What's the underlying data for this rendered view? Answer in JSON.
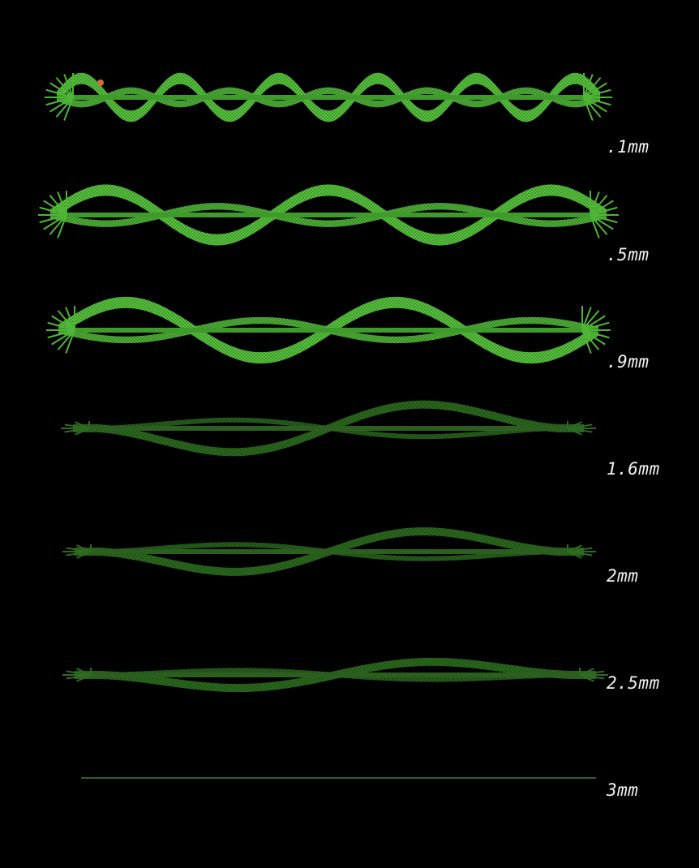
{
  "figure": {
    "background": "#000000",
    "mesh_color": "#3fa12b",
    "mesh_highlight": "#7be05a",
    "mesh_dark": "#1f4a16",
    "marker_color": "#d96a2a",
    "rows": [
      {
        "label": ".1mm",
        "waves": 5.5,
        "amplitude": 1.0
      },
      {
        "label": ".5mm",
        "waves": 2.5,
        "amplitude": 0.85
      },
      {
        "label": ".9mm",
        "waves": 2.0,
        "amplitude": 0.8
      },
      {
        "label": "1.6mm",
        "waves": 1.0,
        "amplitude": 0.55
      },
      {
        "label": "2mm",
        "waves": 1.0,
        "amplitude": 0.45
      },
      {
        "label": "2.5mm",
        "waves": 1.0,
        "amplitude": 0.3
      },
      {
        "label": "3mm",
        "waves": 0,
        "amplitude": 0
      }
    ]
  }
}
